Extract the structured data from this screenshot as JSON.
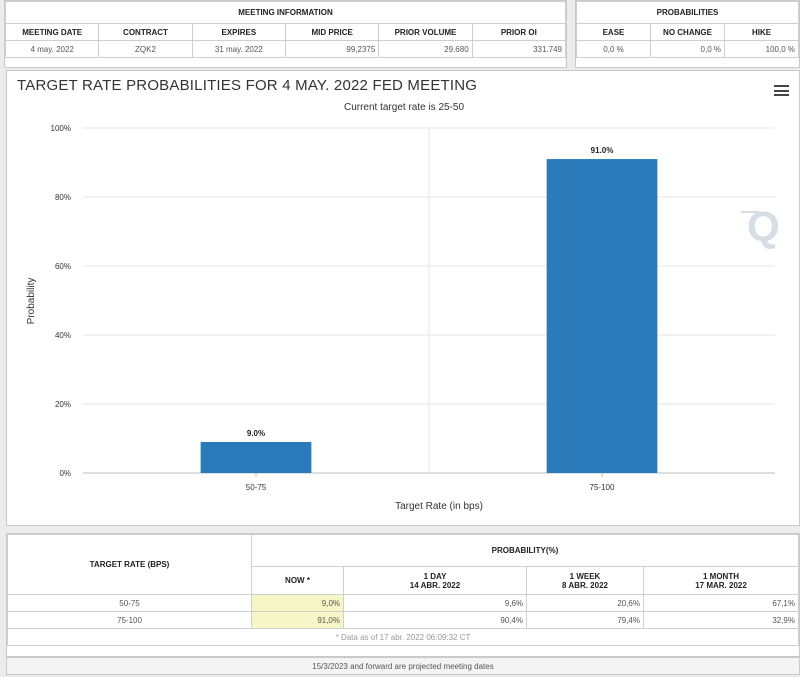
{
  "meeting_info": {
    "header": "MEETING INFORMATION",
    "columns": [
      "MEETING DATE",
      "CONTRACT",
      "EXPIRES",
      "MID PRICE",
      "PRIOR VOLUME",
      "PRIOR OI"
    ],
    "values": [
      "4 may. 2022",
      "ZQK2",
      "31 may. 2022",
      "99,2375",
      "29.680",
      "331.749"
    ]
  },
  "probabilities": {
    "header": "PROBABILITIES",
    "columns": [
      "EASE",
      "NO CHANGE",
      "HIKE"
    ],
    "values": [
      "0,0 %",
      "0,0 %",
      "100,0 %"
    ]
  },
  "chart_data": {
    "type": "bar",
    "title": "TARGET RATE PROBABILITIES FOR 4 MAY. 2022 FED MEETING",
    "subtitle": "Current target rate is 25-50",
    "xlabel": "Target Rate (in bps)",
    "ylabel": "Probability",
    "categories": [
      "50-75",
      "75-100"
    ],
    "values": [
      9.0,
      91.0
    ],
    "data_labels": [
      "9.0%",
      "91.0%"
    ],
    "ylim": [
      0,
      100
    ],
    "yticks": [
      0,
      20,
      40,
      60,
      80,
      100
    ],
    "ytick_labels": [
      "0%",
      "20%",
      "40%",
      "60%",
      "80%",
      "100%"
    ],
    "grid": true,
    "bar_color": "#2b7bba"
  },
  "history": {
    "rate_header": "TARGET RATE (BPS)",
    "prob_header": "PROBABILITY(%)",
    "col_now": "NOW *",
    "col_1day": "1 DAY",
    "col_1day_date": "14 ABR. 2022",
    "col_1week": "1 WEEK",
    "col_1week_date": "8 ABR. 2022",
    "col_1month": "1 MONTH",
    "col_1month_date": "17 MAR. 2022",
    "rows": [
      {
        "rate": "50-75",
        "now": "9,0%",
        "day": "9,6%",
        "week": "20,6%",
        "month": "67,1%"
      },
      {
        "rate": "75-100",
        "now": "91,0%",
        "day": "90,4%",
        "week": "79,4%",
        "month": "32,9%"
      }
    ],
    "note": "* Data as of 17 abr. 2022 06:09:32 CT"
  },
  "footer": "15/3/2023 and forward are projected meeting dates",
  "icons": {
    "menu": "hamburger-menu-icon",
    "watermark": "q-logo-icon"
  }
}
